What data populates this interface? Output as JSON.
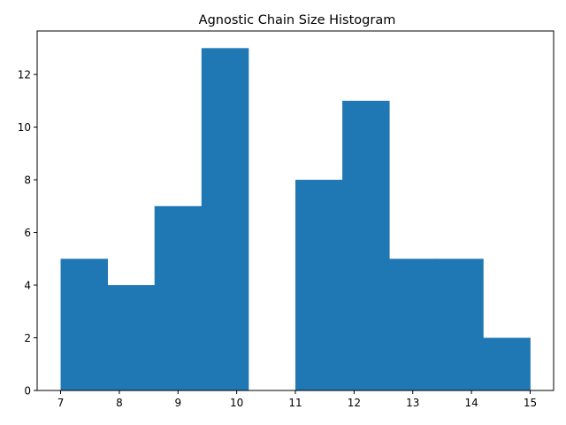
{
  "chart_data": {
    "type": "bar",
    "title": "Agnostic Chain Size Histogram",
    "xlabel": "",
    "ylabel": "",
    "bin_edges": [
      7.0,
      7.8,
      8.6,
      9.4,
      10.2,
      11.0,
      11.8,
      12.6,
      13.4,
      14.2,
      15.0
    ],
    "counts": [
      5,
      4,
      7,
      13,
      0,
      8,
      11,
      5,
      5,
      2
    ],
    "xlim": [
      6.6,
      15.4
    ],
    "ylim": [
      0,
      13.65
    ],
    "xticks": [
      "7",
      "8",
      "9",
      "10",
      "11",
      "12",
      "13",
      "14",
      "15"
    ],
    "yticks": [
      "0",
      "2",
      "4",
      "6",
      "8",
      "10",
      "12"
    ],
    "bar_color": "#1f77b4",
    "grid": false,
    "legend": "none"
  }
}
